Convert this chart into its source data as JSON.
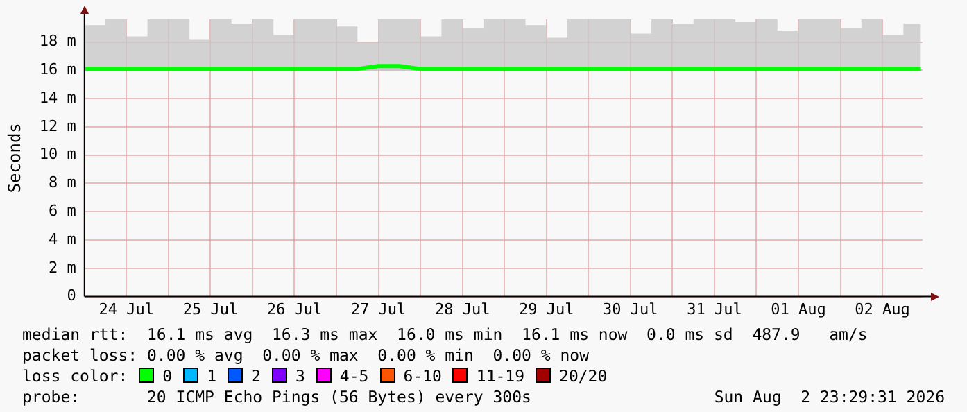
{
  "chart_data": {
    "type": "line",
    "ylabel": "Seconds",
    "legend_title": "loss color:",
    "legend": "bottom",
    "grid": true,
    "marker": "none",
    "line_style": "solid",
    "x": [
      "2026-07-24T00:00",
      "2026-07-24T06:00",
      "2026-07-24T12:00",
      "2026-07-24T18:00",
      "2026-07-25T00:00",
      "2026-07-25T06:00",
      "2026-07-25T12:00",
      "2026-07-25T18:00",
      "2026-07-26T00:00",
      "2026-07-26T06:00",
      "2026-07-26T12:00",
      "2026-07-26T18:00",
      "2026-07-27T00:00",
      "2026-07-27T06:00",
      "2026-07-27T12:00",
      "2026-07-27T18:00",
      "2026-07-28T00:00",
      "2026-07-28T06:00",
      "2026-07-28T12:00",
      "2026-07-28T18:00",
      "2026-07-29T00:00",
      "2026-07-29T06:00",
      "2026-07-29T12:00",
      "2026-07-29T18:00",
      "2026-07-30T00:00",
      "2026-07-30T06:00",
      "2026-07-30T12:00",
      "2026-07-30T18:00",
      "2026-07-31T00:00",
      "2026-07-31T06:00",
      "2026-07-31T12:00",
      "2026-07-31T18:00",
      "2026-08-01T00:00",
      "2026-08-01T06:00",
      "2026-08-01T12:00",
      "2026-08-01T18:00",
      "2026-08-02T00:00",
      "2026-08-02T06:00",
      "2026-08-02T12:00",
      "2026-08-02T18:00",
      "2026-08-02T22:48"
    ],
    "xlim": [
      "2026-07-24T00:00",
      "2026-08-02T23:29"
    ],
    "xticks": [
      {
        "value": "2026-07-24T00:00",
        "label": null
      },
      {
        "value": "2026-07-24T12:00",
        "label": "24 Jul"
      },
      {
        "value": "2026-07-25T00:00",
        "label": null
      },
      {
        "value": "2026-07-25T12:00",
        "label": "25 Jul"
      },
      {
        "value": "2026-07-26T00:00",
        "label": null
      },
      {
        "value": "2026-07-26T12:00",
        "label": "26 Jul"
      },
      {
        "value": "2026-07-27T00:00",
        "label": null
      },
      {
        "value": "2026-07-27T12:00",
        "label": "27 Jul"
      },
      {
        "value": "2026-07-28T00:00",
        "label": null
      },
      {
        "value": "2026-07-28T12:00",
        "label": "28 Jul"
      },
      {
        "value": "2026-07-29T00:00",
        "label": null
      },
      {
        "value": "2026-07-29T12:00",
        "label": "29 Jul"
      },
      {
        "value": "2026-07-30T00:00",
        "label": null
      },
      {
        "value": "2026-07-30T12:00",
        "label": "30 Jul"
      },
      {
        "value": "2026-07-31T00:00",
        "label": null
      },
      {
        "value": "2026-07-31T12:00",
        "label": "31 Jul"
      },
      {
        "value": "2026-08-01T00:00",
        "label": null
      },
      {
        "value": "2026-08-01T12:00",
        "label": "01 Aug"
      },
      {
        "value": "2026-08-02T00:00",
        "label": null
      },
      {
        "value": "2026-08-02T12:00",
        "label": "02 Aug"
      }
    ],
    "ylim": [
      0,
      19.6
    ],
    "yticks": [
      0,
      {
        "value": 2,
        "label": "2 m"
      },
      {
        "value": 4,
        "label": "4 m"
      },
      {
        "value": 6,
        "label": "6 m"
      },
      {
        "value": 8,
        "label": "8 m"
      },
      {
        "value": 10,
        "label": "10 m"
      },
      {
        "value": 12,
        "label": "12 m"
      },
      {
        "value": 14,
        "label": "14 m"
      },
      {
        "value": 16,
        "label": "16 m"
      },
      {
        "value": 18,
        "label": "18 m"
      }
    ],
    "series": [
      {
        "name": "0",
        "color": "#00ff00",
        "values": [
          16.1,
          16.1,
          16.1,
          16.1,
          16.1,
          16.1,
          16.1,
          16.1,
          16.1,
          16.1,
          16.1,
          16.1,
          16.1,
          16.1,
          16.3,
          16.3,
          16.1,
          16.1,
          16.1,
          16.1,
          16.1,
          16.1,
          16.1,
          16.1,
          16.1,
          16.1,
          16.1,
          16.1,
          16.1,
          16.1,
          16.1,
          16.1,
          16.1,
          16.1,
          16.1,
          16.1,
          16.1,
          16.1,
          16.1,
          16.1,
          16.1
        ],
        "lower": [
          16.0,
          16.0,
          16.0,
          16.0,
          16.0,
          16.0,
          16.0,
          16.0,
          16.0,
          16.0,
          16.0,
          16.0,
          16.0,
          16.0,
          16.0,
          16.0,
          16.0,
          16.0,
          16.0,
          16.0,
          16.0,
          16.0,
          16.0,
          16.0,
          16.0,
          16.0,
          16.0,
          16.0,
          16.0,
          16.0,
          16.0,
          16.0,
          16.0,
          16.0,
          16.0,
          16.0,
          16.0,
          16.0,
          16.0,
          16.0,
          16.0
        ],
        "upper": [
          19.2,
          19.6,
          18.4,
          19.6,
          19.6,
          18.2,
          19.6,
          19.3,
          19.6,
          18.5,
          19.6,
          19.6,
          19.1,
          18.0,
          19.6,
          19.6,
          18.4,
          19.6,
          19.0,
          19.6,
          19.6,
          19.2,
          18.3,
          19.6,
          19.6,
          19.6,
          18.6,
          19.6,
          19.3,
          19.6,
          19.6,
          19.4,
          19.6,
          18.8,
          19.6,
          19.6,
          19.0,
          19.6,
          18.5,
          19.3,
          18.6
        ]
      },
      {
        "name": "1",
        "color": "#00b8ff",
        "values": [
          null,
          null,
          null,
          null,
          null,
          null,
          null,
          null,
          null,
          null,
          null,
          null,
          null,
          null,
          null,
          null,
          null,
          null,
          null,
          null,
          null,
          null,
          null,
          null,
          null,
          null,
          null,
          null,
          null,
          null,
          null,
          null,
          null,
          null,
          null,
          null,
          null,
          null,
          null,
          null,
          null
        ]
      },
      {
        "name": "2",
        "color": "#0059ff",
        "values": [
          null,
          null,
          null,
          null,
          null,
          null,
          null,
          null,
          null,
          null,
          null,
          null,
          null,
          null,
          null,
          null,
          null,
          null,
          null,
          null,
          null,
          null,
          null,
          null,
          null,
          null,
          null,
          null,
          null,
          null,
          null,
          null,
          null,
          null,
          null,
          null,
          null,
          null,
          null,
          null,
          null
        ]
      },
      {
        "name": "3",
        "color": "#7e00ff",
        "values": [
          null,
          null,
          null,
          null,
          null,
          null,
          null,
          null,
          null,
          null,
          null,
          null,
          null,
          null,
          null,
          null,
          null,
          null,
          null,
          null,
          null,
          null,
          null,
          null,
          null,
          null,
          null,
          null,
          null,
          null,
          null,
          null,
          null,
          null,
          null,
          null,
          null,
          null,
          null,
          null,
          null
        ]
      },
      {
        "name": "4-5",
        "color": "#ff00ff",
        "values": [
          null,
          null,
          null,
          null,
          null,
          null,
          null,
          null,
          null,
          null,
          null,
          null,
          null,
          null,
          null,
          null,
          null,
          null,
          null,
          null,
          null,
          null,
          null,
          null,
          null,
          null,
          null,
          null,
          null,
          null,
          null,
          null,
          null,
          null,
          null,
          null,
          null,
          null,
          null,
          null,
          null
        ]
      },
      {
        "name": "6-10",
        "color": "#ff5500",
        "values": [
          null,
          null,
          null,
          null,
          null,
          null,
          null,
          null,
          null,
          null,
          null,
          null,
          null,
          null,
          null,
          null,
          null,
          null,
          null,
          null,
          null,
          null,
          null,
          null,
          null,
          null,
          null,
          null,
          null,
          null,
          null,
          null,
          null,
          null,
          null,
          null,
          null,
          null,
          null,
          null,
          null
        ]
      },
      {
        "name": "11-19",
        "color": "#ff0000",
        "values": [
          null,
          null,
          null,
          null,
          null,
          null,
          null,
          null,
          null,
          null,
          null,
          null,
          null,
          null,
          null,
          null,
          null,
          null,
          null,
          null,
          null,
          null,
          null,
          null,
          null,
          null,
          null,
          null,
          null,
          null,
          null,
          null,
          null,
          null,
          null,
          null,
          null,
          null,
          null,
          null,
          null
        ]
      },
      {
        "name": "20/20",
        "color": "#a10000",
        "values": [
          null,
          null,
          null,
          null,
          null,
          null,
          null,
          null,
          null,
          null,
          null,
          null,
          null,
          null,
          null,
          null,
          null,
          null,
          null,
          null,
          null,
          null,
          null,
          null,
          null,
          null,
          null,
          null,
          null,
          null,
          null,
          null,
          null,
          null,
          null,
          null,
          null,
          null,
          null,
          null,
          null
        ]
      }
    ],
    "annotations": [
      "median rtt:  16.1 ms avg  16.3 ms max  16.0 ms min  16.1 ms now  0.0 ms sd  487.9   am/s",
      "packet loss: 0.00 % avg  0.00 % max  0.00 % min  0.00 % now",
      "probe:       20 ICMP Echo Pings (56 Bytes) every 300s",
      "Sun Aug  2 23:29:31 2026"
    ]
  }
}
